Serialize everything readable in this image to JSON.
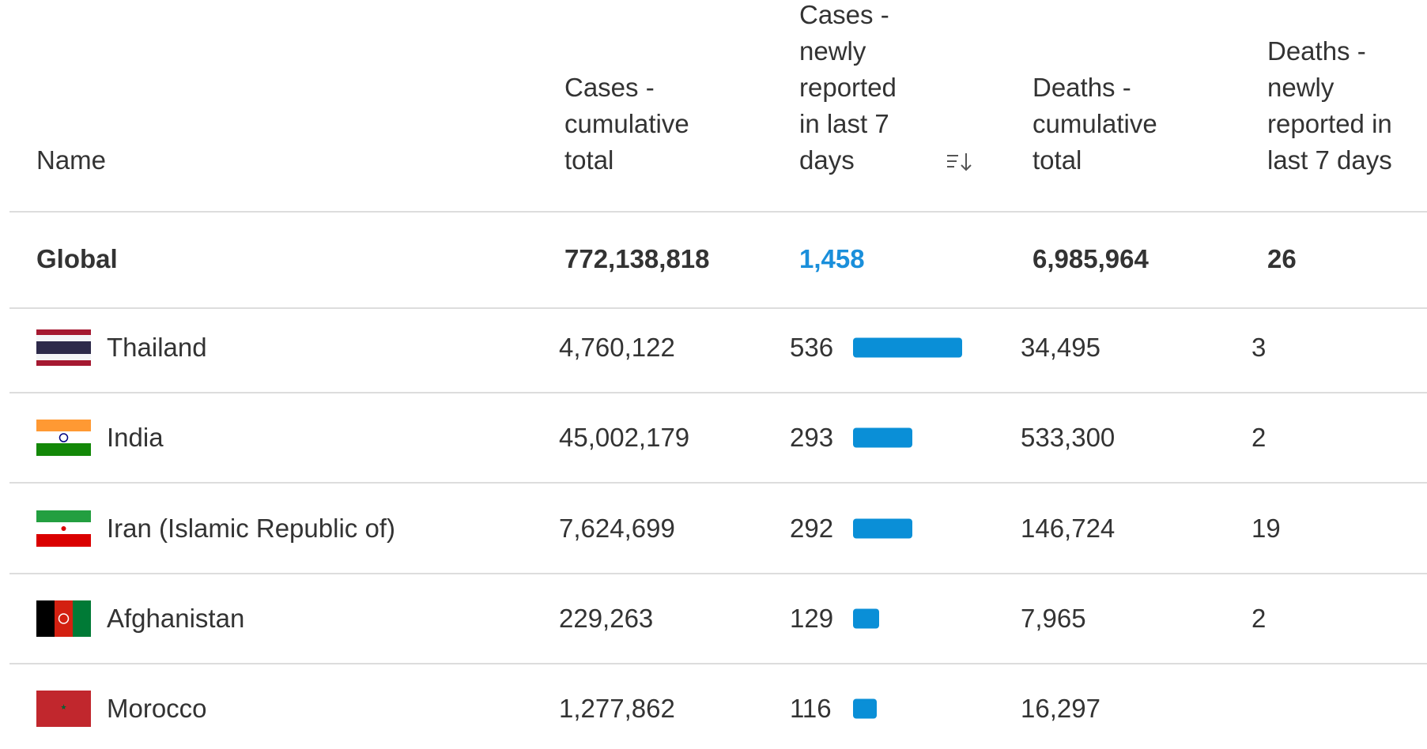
{
  "table": {
    "headers": [
      "Name",
      "Cases - cumulative total",
      "Cases - newly reported in last 7 days",
      "Deaths - cumulative total",
      "Deaths - newly reported in last 7 days"
    ],
    "global": {
      "name": "Global",
      "cases_total": "772,138,818",
      "cases_new": "1,458",
      "deaths_total": "6,985,964",
      "deaths_new": 26
    },
    "rows": [
      {
        "name": "Thailand",
        "cases_total": "4,760,122",
        "cases_new": 536,
        "deaths_total": "34,495",
        "deaths_new": 3
      },
      {
        "name": "India",
        "cases_total": "45,002,179",
        "cases_new": 293,
        "deaths_total": "533,300",
        "deaths_new": 2
      },
      {
        "name": "Iran (Islamic Republic of)",
        "cases_total": "7,624,699",
        "cases_new": 292,
        "deaths_total": "146,724",
        "deaths_new": 19
      },
      {
        "name": "Afghanistan",
        "cases_total": "229,263",
        "cases_new": 129,
        "deaths_total": "7,965",
        "deaths_new": 2
      },
      {
        "name": "Morocco",
        "cases_total": "1,277,862",
        "cases_new": 116,
        "deaths_total": "16,297"
      }
    ]
  }
}
